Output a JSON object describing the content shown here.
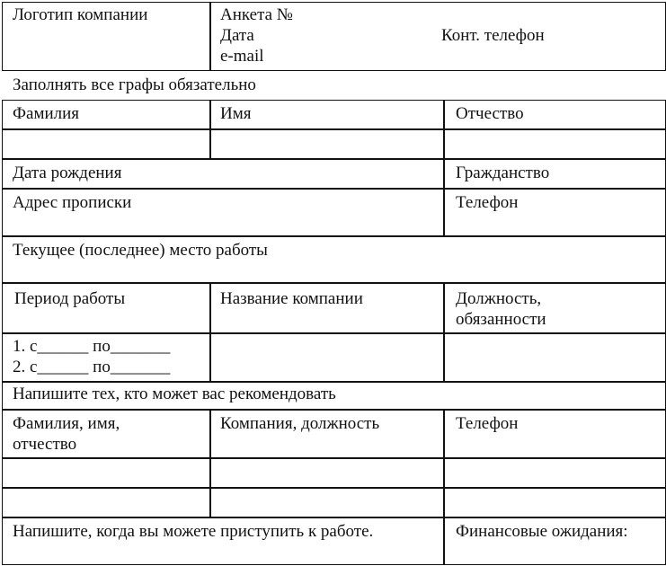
{
  "header": {
    "logo_label": "Логотип компании",
    "form_number": "Анкета №",
    "date": "Дата",
    "contact_phone": "Конт. телефон",
    "email": "e-mail"
  },
  "instruction": "Заполнять все графы обязательно",
  "personal": {
    "last_name": "Фамилия",
    "first_name": "Имя",
    "patronymic": "Отчество",
    "birth_date": "Дата рождения",
    "citizenship": "Гражданство",
    "address": "Адрес прописки",
    "phone": "Телефон"
  },
  "work": {
    "title": "Текущее (последнее) место работы",
    "period": "Период работы",
    "company": "Название компании",
    "position": "Должность,\nобязанности",
    "period_lines": "1. с______ по_______\n2. с______ по_______"
  },
  "references": {
    "title": "Напишите тех, кто может вас рекомендовать",
    "name": "Фамилия, имя,\nотчество",
    "company": "Компания, должность",
    "phone": "Телефон"
  },
  "footer": {
    "start_date": "Напишите, когда вы можете приступить к работе.",
    "salary": "Финансовые ожидания:"
  }
}
